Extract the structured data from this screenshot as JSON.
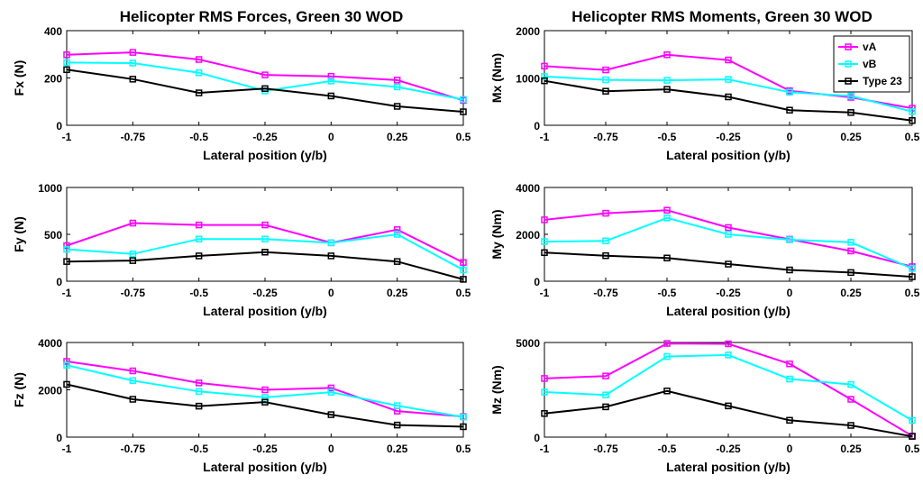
{
  "figure": {
    "left_title": "Helicopter RMS Forces, Green 30 WOD",
    "right_title": "Helicopter RMS Moments, Green 30 WOD"
  },
  "colors": {
    "vA": "#ff00ff",
    "vB": "#00ffff",
    "Type 23": "#000000"
  },
  "legend": [
    {
      "name": "vA",
      "color": "#ff00ff"
    },
    {
      "name": "vB",
      "color": "#00ffff"
    },
    {
      "name": "Type 23",
      "color": "#000000"
    }
  ],
  "chart_data": [
    {
      "type": "line",
      "ylabel": "Fx (N)",
      "xlabel": "Lateral position (y/b)",
      "x": [
        -1,
        -0.75,
        -0.5,
        -0.25,
        0,
        0.25,
        0.5
      ],
      "xticklabels": [
        "-1",
        "-0.75",
        "-0.5",
        "-0.25",
        "0",
        "0.25",
        "0.5"
      ],
      "ylim": [
        0,
        400
      ],
      "yticks": [
        0,
        200,
        400
      ],
      "series": [
        {
          "name": "vA",
          "values": [
            298,
            308,
            278,
            213,
            207,
            191,
            105
          ]
        },
        {
          "name": "vB",
          "values": [
            265,
            263,
            222,
            145,
            187,
            162,
            109
          ]
        },
        {
          "name": "Type 23",
          "values": [
            235,
            195,
            137,
            155,
            124,
            80,
            57
          ]
        }
      ]
    },
    {
      "type": "line",
      "ylabel": "Mx (Nm)",
      "xlabel": "Lateral position (y/b)",
      "x": [
        -1,
        -0.75,
        -0.5,
        -0.25,
        0,
        0.25,
        0.5
      ],
      "xticklabels": [
        "-1",
        "-0.75",
        "-0.5",
        "-0.25",
        "0",
        "0.25",
        "0.5"
      ],
      "ylim": [
        0,
        2000
      ],
      "yticks": [
        0,
        1000,
        2000
      ],
      "series": [
        {
          "name": "vA",
          "values": [
            1250,
            1170,
            1490,
            1380,
            730,
            590,
            360
          ]
        },
        {
          "name": "vB",
          "values": [
            1030,
            960,
            950,
            970,
            700,
            620,
            290
          ]
        },
        {
          "name": "Type 23",
          "values": [
            940,
            720,
            760,
            600,
            320,
            270,
            100
          ]
        }
      ]
    },
    {
      "type": "line",
      "ylabel": "Fy (N)",
      "xlabel": "Lateral position (y/b)",
      "x": [
        -1,
        -0.75,
        -0.5,
        -0.25,
        0,
        0.25,
        0.5
      ],
      "xticklabels": [
        "-1",
        "-0.75",
        "-0.5",
        "-0.25",
        "0",
        "0.25",
        "0.5"
      ],
      "ylim": [
        0,
        1000
      ],
      "yticks": [
        0,
        500,
        1000
      ],
      "series": [
        {
          "name": "vA",
          "values": [
            380,
            620,
            600,
            600,
            410,
            550,
            200
          ]
        },
        {
          "name": "vB",
          "values": [
            340,
            290,
            450,
            450,
            410,
            500,
            120
          ]
        },
        {
          "name": "Type 23",
          "values": [
            210,
            220,
            270,
            310,
            270,
            210,
            20
          ]
        }
      ]
    },
    {
      "type": "line",
      "ylabel": "My (Nm)",
      "xlabel": "Lateral position (y/b)",
      "x": [
        -1,
        -0.75,
        -0.5,
        -0.25,
        0,
        0.25,
        0.5
      ],
      "xticklabels": [
        "-1",
        "-0.75",
        "-0.5",
        "-0.25",
        "0",
        "0.25",
        "0.5"
      ],
      "ylim": [
        0,
        4000
      ],
      "yticks": [
        0,
        2000,
        4000
      ],
      "series": [
        {
          "name": "vA",
          "values": [
            2620,
            2900,
            3030,
            2290,
            1790,
            1290,
            620
          ]
        },
        {
          "name": "vB",
          "values": [
            1690,
            1720,
            2700,
            2000,
            1770,
            1660,
            540
          ]
        },
        {
          "name": "Type 23",
          "values": [
            1220,
            1090,
            990,
            730,
            480,
            370,
            190
          ]
        }
      ]
    },
    {
      "type": "line",
      "ylabel": "Fz (N)",
      "xlabel": "Lateral position (y/b)",
      "x": [
        -1,
        -0.75,
        -0.5,
        -0.25,
        0,
        0.25,
        0.5
      ],
      "xticklabels": [
        "-1",
        "-0.75",
        "-0.5",
        "-0.25",
        "0",
        "0.25",
        "0.5"
      ],
      "ylim": [
        0,
        4000
      ],
      "yticks": [
        0,
        2000,
        4000
      ],
      "series": [
        {
          "name": "vA",
          "values": [
            3200,
            2800,
            2290,
            2000,
            2080,
            1100,
            870
          ]
        },
        {
          "name": "vB",
          "values": [
            3040,
            2390,
            1930,
            1680,
            1900,
            1330,
            850
          ]
        },
        {
          "name": "Type 23",
          "values": [
            2230,
            1600,
            1310,
            1480,
            950,
            510,
            440
          ]
        }
      ]
    },
    {
      "type": "line",
      "ylabel": "Mz (Nm)",
      "xlabel": "Lateral position (y/b)",
      "x": [
        -1,
        -0.75,
        -0.5,
        -0.25,
        0,
        0.25,
        0.5
      ],
      "xticklabels": [
        "-1",
        "-0.75",
        "-0.5",
        "-0.25",
        "0",
        "0.25",
        "0.5"
      ],
      "ylim": [
        0,
        5000
      ],
      "yticks": [
        0,
        5000
      ],
      "series": [
        {
          "name": "vA",
          "values": [
            3100,
            3230,
            4950,
            4930,
            3870,
            2000,
            60
          ]
        },
        {
          "name": "vB",
          "values": [
            2380,
            2230,
            4260,
            4340,
            3070,
            2780,
            880
          ]
        },
        {
          "name": "Type 23",
          "values": [
            1250,
            1600,
            2440,
            1650,
            890,
            620,
            40
          ]
        }
      ]
    }
  ]
}
